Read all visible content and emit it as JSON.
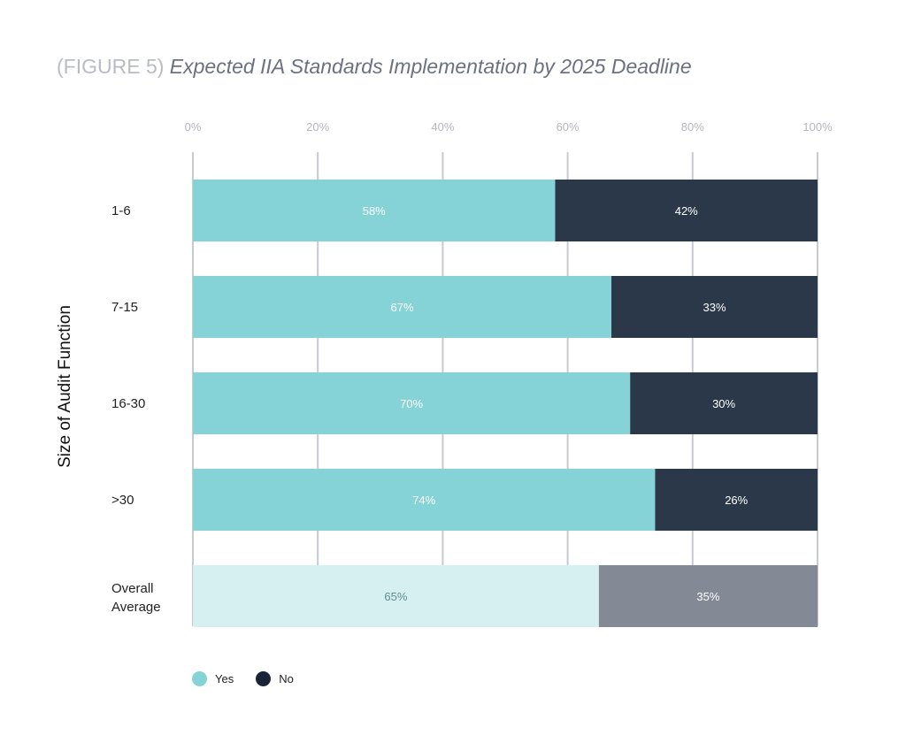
{
  "chart_data": {
    "type": "bar",
    "orientation": "horizontal",
    "stacked": true,
    "title_prefix": "(FIGURE 5)",
    "title": "Expected IIA Standards Implementation by 2025 Deadline",
    "ylabel": "Size of Audit Function",
    "xlabel": "",
    "xlim": [
      0,
      100
    ],
    "xticks": [
      "0%",
      "20%",
      "40%",
      "60%",
      "80%",
      "100%"
    ],
    "xtick_values": [
      0,
      20,
      40,
      60,
      80,
      100
    ],
    "grid": "vertical",
    "categories": [
      "1-6",
      "7-15",
      "16-30",
      ">30",
      "Overall Average"
    ],
    "series": [
      {
        "name": "Yes",
        "values": [
          58,
          67,
          70,
          74,
          65
        ],
        "labels": [
          "58%",
          "67%",
          "70%",
          "74%",
          "65%"
        ],
        "color": "#86d3d7",
        "highlight_color": "#d6eff1"
      },
      {
        "name": "No",
        "values": [
          42,
          33,
          30,
          26,
          35
        ],
        "labels": [
          "42%",
          "33%",
          "30%",
          "26%",
          "35%"
        ],
        "color": "#2b384a",
        "highlight_color": "#838a96"
      }
    ],
    "legend": {
      "position": "bottom-left",
      "items": [
        "Yes",
        "No"
      ]
    }
  }
}
